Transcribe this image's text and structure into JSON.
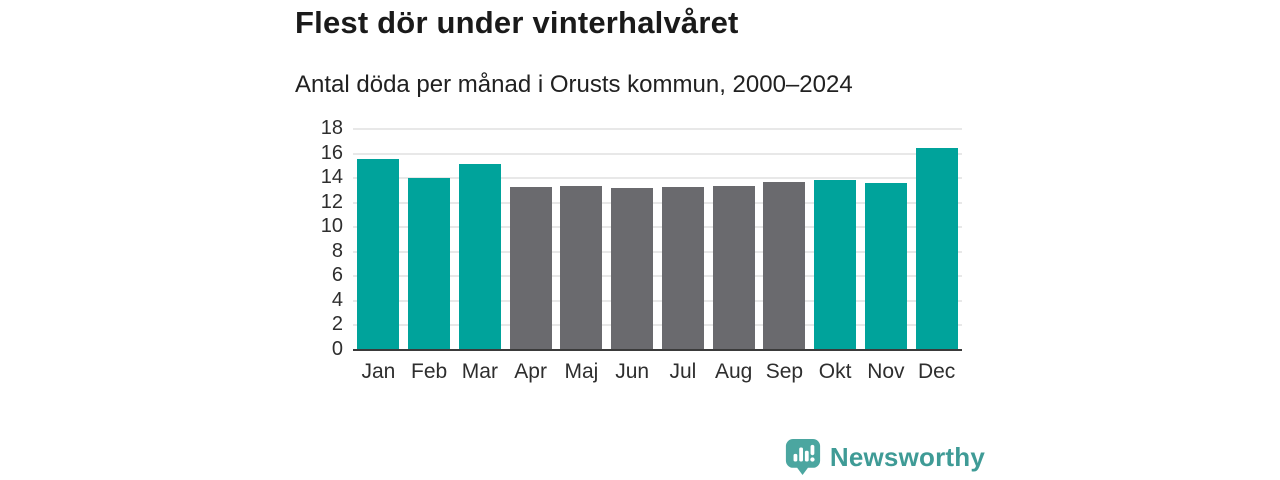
{
  "title": "Flest dör under vinterhalvåret",
  "subtitle": "Antal döda per månad i Orusts kommun, 2000–2024",
  "chart_data": {
    "type": "bar",
    "title": "Flest dör under vinterhalvåret",
    "subtitle": "Antal döda per månad i Orusts kommun, 2000–2024",
    "categories": [
      "Jan",
      "Feb",
      "Mar",
      "Apr",
      "Maj",
      "Jun",
      "Jul",
      "Aug",
      "Sep",
      "Okt",
      "Nov",
      "Dec"
    ],
    "values": [
      15.5,
      13.9,
      15.1,
      13.2,
      13.3,
      13.1,
      13.2,
      13.3,
      13.6,
      13.8,
      13.5,
      16.4
    ],
    "groups": [
      "winter",
      "winter",
      "winter",
      "summer",
      "summer",
      "summer",
      "summer",
      "summer",
      "summer",
      "winter",
      "winter",
      "winter"
    ],
    "colors": {
      "winter": "#00a39b",
      "summer": "#6a6a6e"
    },
    "xlabel": "",
    "ylabel": "",
    "ylim": [
      0,
      18
    ],
    "yticks": [
      0,
      2,
      4,
      6,
      8,
      10,
      12,
      14,
      16,
      18
    ],
    "grid": true,
    "legend": "none",
    "gridline_color": "#e8e8e8",
    "axis_color": "#3a3a3a"
  },
  "logo": {
    "text": "Newsworthy",
    "text_color": "#3f9b96",
    "icon_color": "#4ba6a0",
    "icon": "speech-bubble-bar-chart"
  }
}
